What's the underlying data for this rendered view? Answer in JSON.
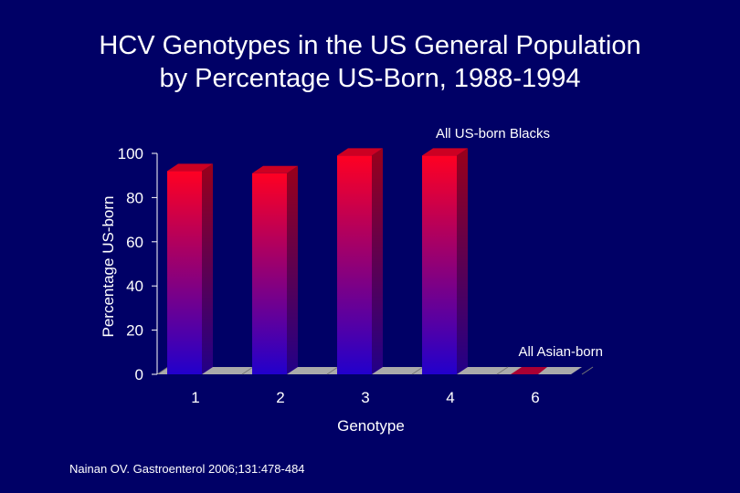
{
  "slide": {
    "title_line1": "HCV Genotypes in the US General Population",
    "title_line2": "by Percentage US-Born, 1988-1994",
    "citation": "Nainan OV. Gastroenterol 2006;131:478-484"
  },
  "chart_data": {
    "type": "bar",
    "title": "HCV Genotypes in the US General Population by Percentage US-Born, 1988-1994",
    "xlabel": "Genotype",
    "ylabel": "Percentage US-born",
    "categories": [
      "1",
      "2",
      "3",
      "4",
      "6"
    ],
    "values": [
      92,
      91,
      99,
      99,
      0
    ],
    "ylim": [
      0,
      100
    ],
    "yticks": [
      0,
      20,
      40,
      60,
      80,
      100
    ],
    "grid": false,
    "legend": "none",
    "annotations": [
      {
        "text": "All US-born Blacks"
      },
      {
        "text": "All Asian-born"
      }
    ],
    "colors": {
      "background": "#000066",
      "bar_top": "#ff0022",
      "bar_bottom": "#2200cc",
      "floor": "#aaaaaa",
      "bar6": "#aa0033"
    }
  }
}
